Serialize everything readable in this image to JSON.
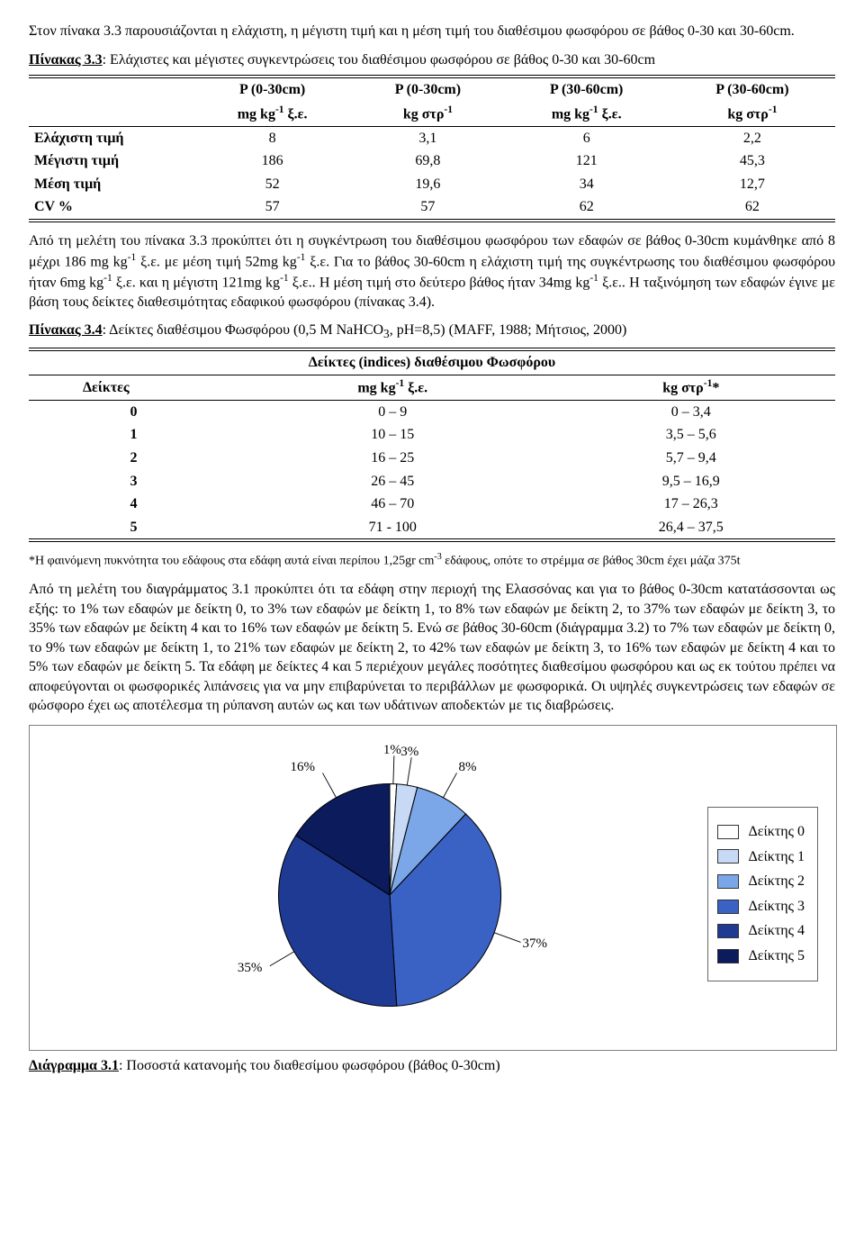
{
  "intro_para": "Στον πίνακα 3.3 παρουσιάζονται η ελάχιστη, η μέγιστη τιμή και η μέση τιμή του διαθέσιμου φωσφόρου σε βάθος 0-30 και 30-60cm.",
  "table33": {
    "caption_bold": "Πίνακας 3.3",
    "caption_rest": ": Ελάχιστες και μέγιστες συγκεντρώσεις του διαθέσιμου φωσφόρου σε βάθος 0-30 και 30-60cm",
    "head_row1": [
      "P (0-30cm)",
      "P (0-30cm)",
      "P (30-60cm)",
      "P (30-60cm)"
    ],
    "head_row2_html": [
      "mg kg<sup>-1</sup> ξ.ε.",
      "kg στρ<sup>-1</sup>",
      "mg kg<sup>-1</sup> ξ.ε.",
      "kg στρ<sup>-1</sup>"
    ],
    "rows": [
      {
        "label": "Ελάχιστη τιμή",
        "cells": [
          "8",
          "3,1",
          "6",
          "2,2"
        ]
      },
      {
        "label": "Μέγιστη τιμή",
        "cells": [
          "186",
          "69,8",
          "121",
          "45,3"
        ]
      },
      {
        "label": "Μέση τιμή",
        "cells": [
          "52",
          "19,6",
          "34",
          "12,7"
        ]
      },
      {
        "label": "CV %",
        "cells": [
          "57",
          "57",
          "62",
          "62"
        ]
      }
    ]
  },
  "para2_html": "Από τη μελέτη του πίνακα 3.3 προκύπτει ότι η συγκέντρωση του διαθέσιμου φωσφόρου των εδαφών σε βάθος 0-30cm κυμάνθηκε από 8 μέχρι 186 mg kg<sup>-1</sup> ξ.ε. με μέση τιμή 52mg kg<sup>-1</sup> ξ.ε. Για το βάθος 30-60cm η ελάχιστη τιμή της συγκέντρωσης του διαθέσιμου φωσφόρου ήταν 6mg kg<sup>-1</sup> ξ.ε. και η μέγιστη 121mg kg<sup>-1</sup> ξ.ε.. Η μέση τιμή στο δεύτερο βάθος ήταν 34mg kg<sup>-1</sup> ξ.ε.. Η ταξινόμηση των εδαφών έγινε με βάση τους δείκτες διαθεσιμότητας εδαφικού φωσφόρου (πίνακας 3.4).",
  "table34": {
    "caption_bold": "Πίνακας 3.4",
    "caption_rest_html": ": Δείκτες διαθέσιμου Φωσφόρου (0,5 M NaHCO<sub>3</sub>, pH=8,5) (MAFF, 1988; Μήτσιος, 2000)",
    "title": "Δείκτες (indices) διαθέσιμου Φωσφόρου",
    "head_html": [
      "Δείκτες",
      "mg kg<sup>-1</sup> ξ.ε.",
      "kg στρ<sup>-1</sup>*"
    ],
    "rows": [
      [
        "0",
        "0 – 9",
        "0 – 3,4"
      ],
      [
        "1",
        "10 – 15",
        "3,5 – 5,6"
      ],
      [
        "2",
        "16 – 25",
        "5,7 – 9,4"
      ],
      [
        "3",
        "26 – 45",
        "9,5 – 16,9"
      ],
      [
        "4",
        "46 – 70",
        "17 – 26,3"
      ],
      [
        "5",
        "71 - 100",
        "26,4 – 37,5"
      ]
    ]
  },
  "footnote_html": "*Η φαινόμενη πυκνότητα του εδάφους στα εδάφη αυτά είναι περίπου 1,25gr cm<sup>-3</sup> εδάφους, οπότε το στρέμμα σε βάθος 30cm έχει μάζα 375t",
  "para3": "Από τη μελέτη του διαγράμματος 3.1 προκύπτει ότι τα εδάφη στην περιοχή της Ελασσόνας και για το βάθος 0-30cm κατατάσσονται ως εξής: το 1% των εδαφών με δείκτη 0, το 3% των εδαφών με δείκτη 1, το 8% των εδαφών με δείκτη 2, το 37% των εδαφών με δείκτη 3, το 35% των εδαφών  με δείκτη 4 και το 16% των εδαφών  με δείκτη 5. Ενώ σε βάθος 30-60cm (διάγραμμα 3.2) το 7% των εδαφών με δείκτη 0, το 9% των εδαφών με δείκτη 1, το 21% των εδαφών με δείκτη 2, το 42% των εδαφών  με δείκτη 3, το 16% των εδαφών με δείκτη 4 και το 5% των εδαφών με δείκτη 5.  Τα εδάφη με δείκτες 4 και 5 περιέχουν μεγάλες ποσότητες διαθεσίμου φωσφόρου και ως εκ τούτου πρέπει να αποφεύγονται οι φωσφορικές λιπάνσεις για να μην επιβαρύνεται το περιβάλλων με φωσφορικά. Οι υψηλές συγκεντρώσεις των εδαφών σε φώσφορο έχει ως αποτέλεσμα τη ρύπανση αυτών ως και των υδάτινων αποδεκτών με τις διαβρώσεις.",
  "chart": {
    "type": "pie",
    "bg": "#ffffff",
    "border": "#808080",
    "slices": [
      {
        "label": "Δείκτης 0",
        "pct": 1,
        "color": "#ffffff"
      },
      {
        "label": "Δείκτης 1",
        "pct": 3,
        "color": "#c7d9f5"
      },
      {
        "label": "Δείκτης 2",
        "pct": 8,
        "color": "#7ba7e8"
      },
      {
        "label": "Δείκτης 3",
        "pct": 37,
        "color": "#3a62c4"
      },
      {
        "label": "Δείκτης 4",
        "pct": 35,
        "color": "#1f3a93"
      },
      {
        "label": "Δείκτης 5",
        "pct": 16,
        "color": "#0b1b5c"
      }
    ],
    "label_suffix": "%",
    "slice_stroke": "#000000",
    "legend_border": "#666666",
    "legend_labels": [
      "Δείκτης 0",
      "Δείκτης 1",
      "Δείκτης 2",
      "Δείκτης 3",
      "Δείκτης 4",
      "Δείκτης 5"
    ],
    "label_font_size": 15,
    "start_angle_deg": -90
  },
  "fig_caption_bold": "Διάγραμμα 3.1",
  "fig_caption_rest": ": Ποσοστά κατανομής του διαθεσίμου φωσφόρου (βάθος 0-30cm)"
}
